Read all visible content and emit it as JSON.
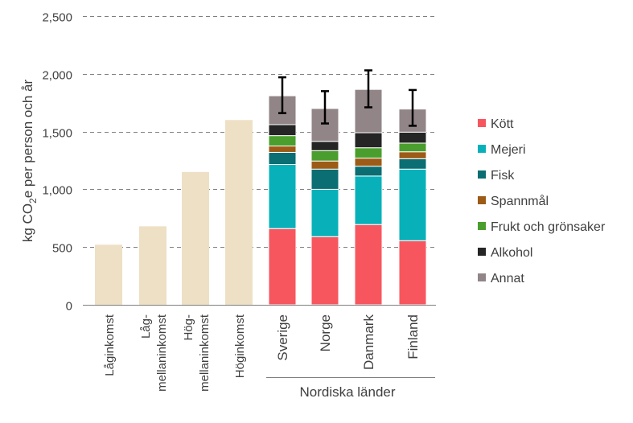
{
  "chart_data": {
    "type": "bar",
    "stacked": true,
    "ylabel": "kg CO",
    "ylabel_sub": "2",
    "ylabel_rest": "e per person och år",
    "ylim": [
      0,
      2500
    ],
    "yticks": [
      0,
      500,
      1000,
      1500,
      2000,
      2500
    ],
    "ytick_labels": [
      "0",
      "500",
      "1,000",
      "1,500",
      "2,000",
      "2,500"
    ],
    "grid": "horizontal dashed",
    "income_categories": [
      {
        "lines": [
          "Låginkomst"
        ],
        "value": 520
      },
      {
        "lines": [
          "Låg-",
          "mellaninkomst"
        ],
        "value": 680
      },
      {
        "lines": [
          "Hög-",
          "mellaninkomst"
        ],
        "value": 1150
      },
      {
        "lines": [
          "Höginkomst"
        ],
        "value": 1600
      }
    ],
    "income_color": "#ede0c5",
    "group_label": "Nordiska länder",
    "countries": [
      "Sverige",
      "Norge",
      "Danmark",
      "Finland"
    ],
    "series": [
      {
        "name": "Kött",
        "color": "#f7565f",
        "values": [
          660,
          590,
          695,
          555
        ]
      },
      {
        "name": "Mejeri",
        "color": "#08b1ba",
        "values": [
          555,
          410,
          420,
          620
        ]
      },
      {
        "name": "Fisk",
        "color": "#0a6e73",
        "values": [
          105,
          175,
          85,
          90
        ]
      },
      {
        "name": "Spannmål",
        "color": "#9c5b16",
        "values": [
          55,
          70,
          70,
          60
        ]
      },
      {
        "name": "Frukt och grönsaker",
        "color": "#4a9e2d",
        "values": [
          90,
          90,
          90,
          75
        ]
      },
      {
        "name": "Alkohol",
        "color": "#252525",
        "values": [
          95,
          80,
          130,
          95
        ]
      },
      {
        "name": "Annat",
        "color": "#918587",
        "values": [
          250,
          285,
          375,
          200
        ]
      }
    ],
    "error_bars": [
      {
        "low": 1660,
        "high": 1970
      },
      {
        "low": 1570,
        "high": 1850
      },
      {
        "low": 1710,
        "high": 2030
      },
      {
        "low": 1550,
        "high": 1860
      }
    ],
    "legend_position": "right"
  }
}
